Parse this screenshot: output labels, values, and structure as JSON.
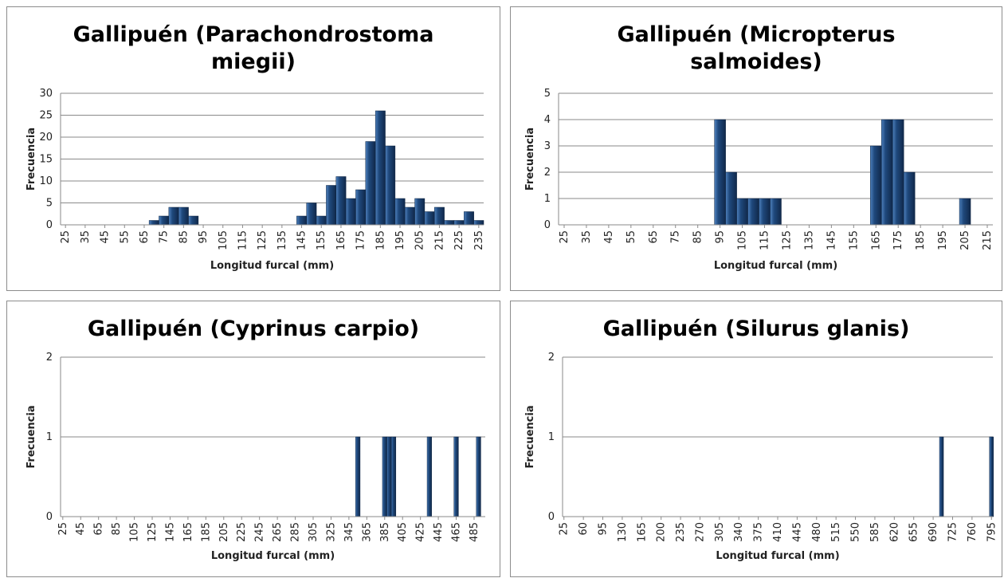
{
  "chart_data": [
    {
      "type": "bar",
      "title": "Gallipuén (Parachondrostoma miegii)",
      "xlabel": "Longitud furcal (mm)",
      "ylabel": "Frecuencia",
      "x": [
        70,
        75,
        80,
        85,
        90,
        145,
        150,
        155,
        160,
        165,
        170,
        175,
        180,
        185,
        190,
        195,
        200,
        205,
        210,
        215,
        220,
        225,
        230,
        235
      ],
      "values": [
        1,
        2,
        4,
        4,
        2,
        2,
        5,
        2,
        9,
        11,
        6,
        8,
        19,
        26,
        18,
        6,
        4,
        6,
        3,
        4,
        1,
        1,
        3,
        1
      ],
      "xlim": [
        22.5,
        237.5
      ],
      "xticks": [
        25,
        35,
        45,
        55,
        65,
        75,
        85,
        95,
        105,
        115,
        125,
        135,
        145,
        155,
        165,
        175,
        185,
        195,
        205,
        215,
        225,
        235
      ],
      "ylim": [
        0,
        30
      ],
      "yticks": [
        0,
        5,
        10,
        15,
        20,
        25,
        30
      ],
      "color": "#1f497d",
      "grid": true
    },
    {
      "type": "bar",
      "title": "Gallipuén (Micropterus salmoides)",
      "xlabel": "Longitud furcal (mm)",
      "ylabel": "Frecuencia",
      "x": [
        95,
        100,
        105,
        110,
        115,
        120,
        165,
        170,
        175,
        180,
        205
      ],
      "values": [
        4,
        2,
        1,
        1,
        1,
        1,
        3,
        4,
        4,
        2,
        1
      ],
      "xlim": [
        22.5,
        217.5
      ],
      "xticks": [
        25,
        35,
        45,
        55,
        65,
        75,
        85,
        95,
        105,
        115,
        125,
        135,
        145,
        155,
        165,
        175,
        185,
        195,
        205,
        215
      ],
      "ylim": [
        0,
        5
      ],
      "yticks": [
        0,
        1,
        2,
        3,
        4,
        5
      ],
      "color": "#1f497d",
      "grid": true
    },
    {
      "type": "bar",
      "title": "Gallipuén (Cyprinus carpio)",
      "xlabel": "Longitud furcal (mm)",
      "ylabel": "Frecuencia",
      "x": [
        355,
        385,
        390,
        395,
        435,
        465,
        490
      ],
      "values": [
        1,
        1,
        1,
        1,
        1,
        1,
        1
      ],
      "xlim": [
        22.5,
        497.5
      ],
      "xticks": [
        25,
        45,
        65,
        85,
        105,
        125,
        145,
        165,
        185,
        205,
        225,
        245,
        265,
        285,
        305,
        325,
        345,
        365,
        385,
        405,
        425,
        445,
        465,
        485
      ],
      "ylim": [
        0,
        2
      ],
      "yticks": [
        0,
        1,
        2
      ],
      "color": "#1f497d",
      "grid": true
    },
    {
      "type": "bar",
      "title": "Gallipuén (Silurus glanis)",
      "xlabel": "Longitud furcal (mm)",
      "ylabel": "Frecuencia",
      "x": [
        705,
        795
      ],
      "values": [
        1,
        1
      ],
      "xlim": [
        22.5,
        797.5
      ],
      "xticks": [
        25,
        60,
        95,
        130,
        165,
        200,
        235,
        270,
        305,
        340,
        375,
        410,
        445,
        480,
        515,
        550,
        585,
        620,
        655,
        690,
        725,
        760,
        795
      ],
      "ylim": [
        0,
        2
      ],
      "yticks": [
        0,
        1,
        2
      ],
      "color": "#1f497d",
      "grid": true
    }
  ]
}
